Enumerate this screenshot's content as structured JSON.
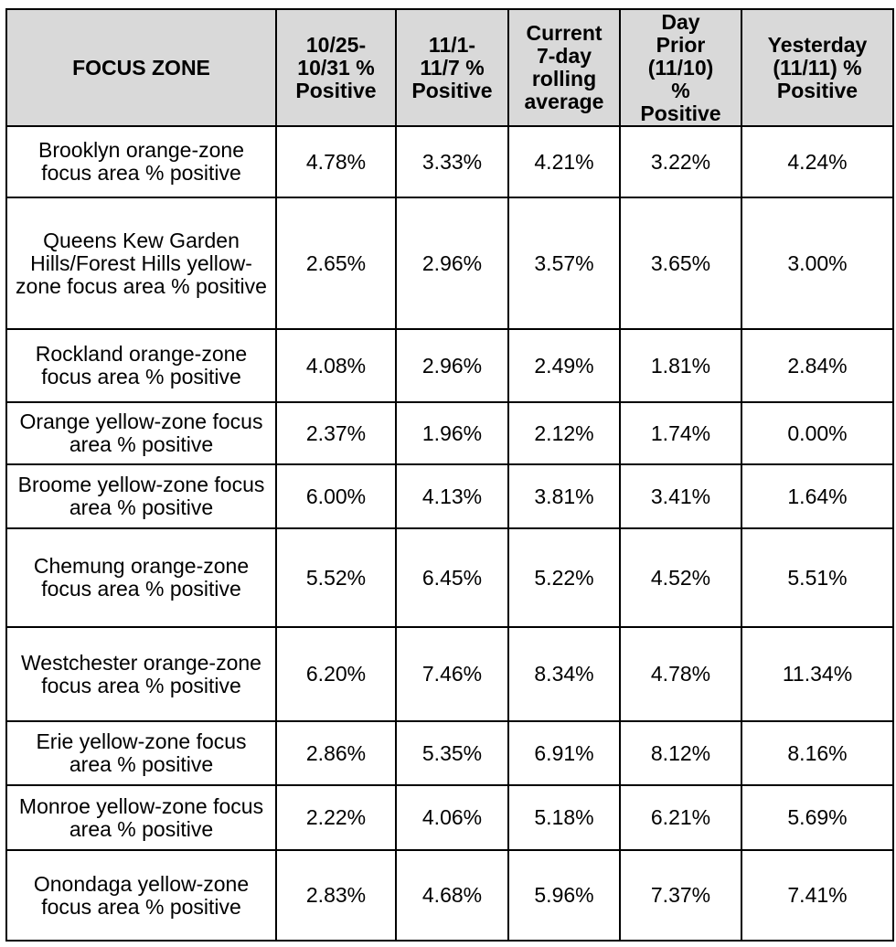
{
  "table": {
    "headers": [
      "FOCUS ZONE",
      "10/25-\n10/31 %\nPositive",
      "11/1-\n11/7 %\nPositive",
      "Current\n7-day\nrolling\naverage",
      "Day\nPrior\n(11/10)\n%\nPositive",
      "Yesterday\n(11/11) %\nPositive"
    ],
    "rows": [
      {
        "zone": "Brooklyn orange-zone focus area % positive",
        "values": [
          "4.78%",
          "3.33%",
          "4.21%",
          "3.22%",
          "4.24%"
        ]
      },
      {
        "zone": "Queens Kew Garden Hills/Forest Hills yellow-zone focus area % positive",
        "values": [
          "2.65%",
          "2.96%",
          "3.57%",
          "3.65%",
          "3.00%"
        ]
      },
      {
        "zone": "Rockland orange-zone focus area % positive",
        "values": [
          "4.08%",
          "2.96%",
          "2.49%",
          "1.81%",
          "2.84%"
        ]
      },
      {
        "zone": "Orange yellow-zone focus area % positive",
        "values": [
          "2.37%",
          "1.96%",
          "2.12%",
          "1.74%",
          "0.00%"
        ]
      },
      {
        "zone": "Broome yellow-zone focus area % positive",
        "values": [
          "6.00%",
          "4.13%",
          "3.81%",
          "3.41%",
          "1.64%"
        ]
      },
      {
        "zone": "Chemung orange-zone focus area % positive",
        "values": [
          "5.52%",
          "6.45%",
          "5.22%",
          "4.52%",
          "5.51%"
        ]
      },
      {
        "zone": "Westchester orange-zone focus area % positive",
        "values": [
          "6.20%",
          "7.46%",
          "8.34%",
          "4.78%",
          "11.34%"
        ]
      },
      {
        "zone": "Erie yellow-zone focus area % positive",
        "values": [
          "2.86%",
          "5.35%",
          "6.91%",
          "8.12%",
          "8.16%"
        ]
      },
      {
        "zone": "Monroe yellow-zone focus area % positive",
        "values": [
          "2.22%",
          "4.06%",
          "5.18%",
          "6.21%",
          "5.69%"
        ]
      },
      {
        "zone": "Onondaga yellow-zone focus area % positive",
        "values": [
          "2.83%",
          "4.68%",
          "5.96%",
          "7.37%",
          "7.41%"
        ]
      }
    ]
  },
  "colors": {
    "header_background": "#d9d9d9",
    "border": "#000000"
  }
}
